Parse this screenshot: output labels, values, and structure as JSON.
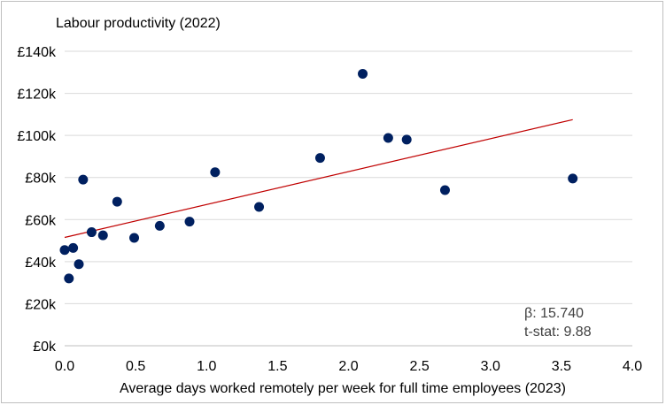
{
  "chart_data": {
    "type": "scatter",
    "title": "Labour productivity (2022)",
    "xlabel": "Average days worked remotely per week for full time employees (2023)",
    "ylabel": "",
    "xlim": [
      0.0,
      4.0
    ],
    "ylim": [
      0,
      140000
    ],
    "x_ticks": [
      "0.0",
      "0.5",
      "1.0",
      "1.5",
      "2.0",
      "2.5",
      "3.0",
      "3.5",
      "4.0"
    ],
    "y_ticks": [
      "£0k",
      "£20k",
      "£40k",
      "£60k",
      "£80k",
      "£100k",
      "£120k",
      "£140k"
    ],
    "grid": "horizontal",
    "legend": "none",
    "points": [
      {
        "x": 0.0,
        "y": 45500
      },
      {
        "x": 0.03,
        "y": 32000
      },
      {
        "x": 0.06,
        "y": 46500
      },
      {
        "x": 0.1,
        "y": 38800
      },
      {
        "x": 0.13,
        "y": 79000
      },
      {
        "x": 0.19,
        "y": 54000
      },
      {
        "x": 0.27,
        "y": 52500
      },
      {
        "x": 0.37,
        "y": 68500
      },
      {
        "x": 0.49,
        "y": 51300
      },
      {
        "x": 0.67,
        "y": 57000
      },
      {
        "x": 0.88,
        "y": 59000
      },
      {
        "x": 1.06,
        "y": 82500
      },
      {
        "x": 1.37,
        "y": 66000
      },
      {
        "x": 1.8,
        "y": 89300
      },
      {
        "x": 2.1,
        "y": 129300
      },
      {
        "x": 2.28,
        "y": 98800
      },
      {
        "x": 2.41,
        "y": 98000
      },
      {
        "x": 2.68,
        "y": 74000
      },
      {
        "x": 3.58,
        "y": 79500
      }
    ],
    "trendline": {
      "x": [
        0.0,
        3.58
      ],
      "y": [
        51500,
        107500
      ]
    },
    "annotations": [
      "β: 15.740",
      "t-stat: 9.88"
    ],
    "colors": {
      "points": "#002060",
      "trendline": "#c00000",
      "grid": "#d9d9d9",
      "axis": "#bfbfbf"
    }
  }
}
